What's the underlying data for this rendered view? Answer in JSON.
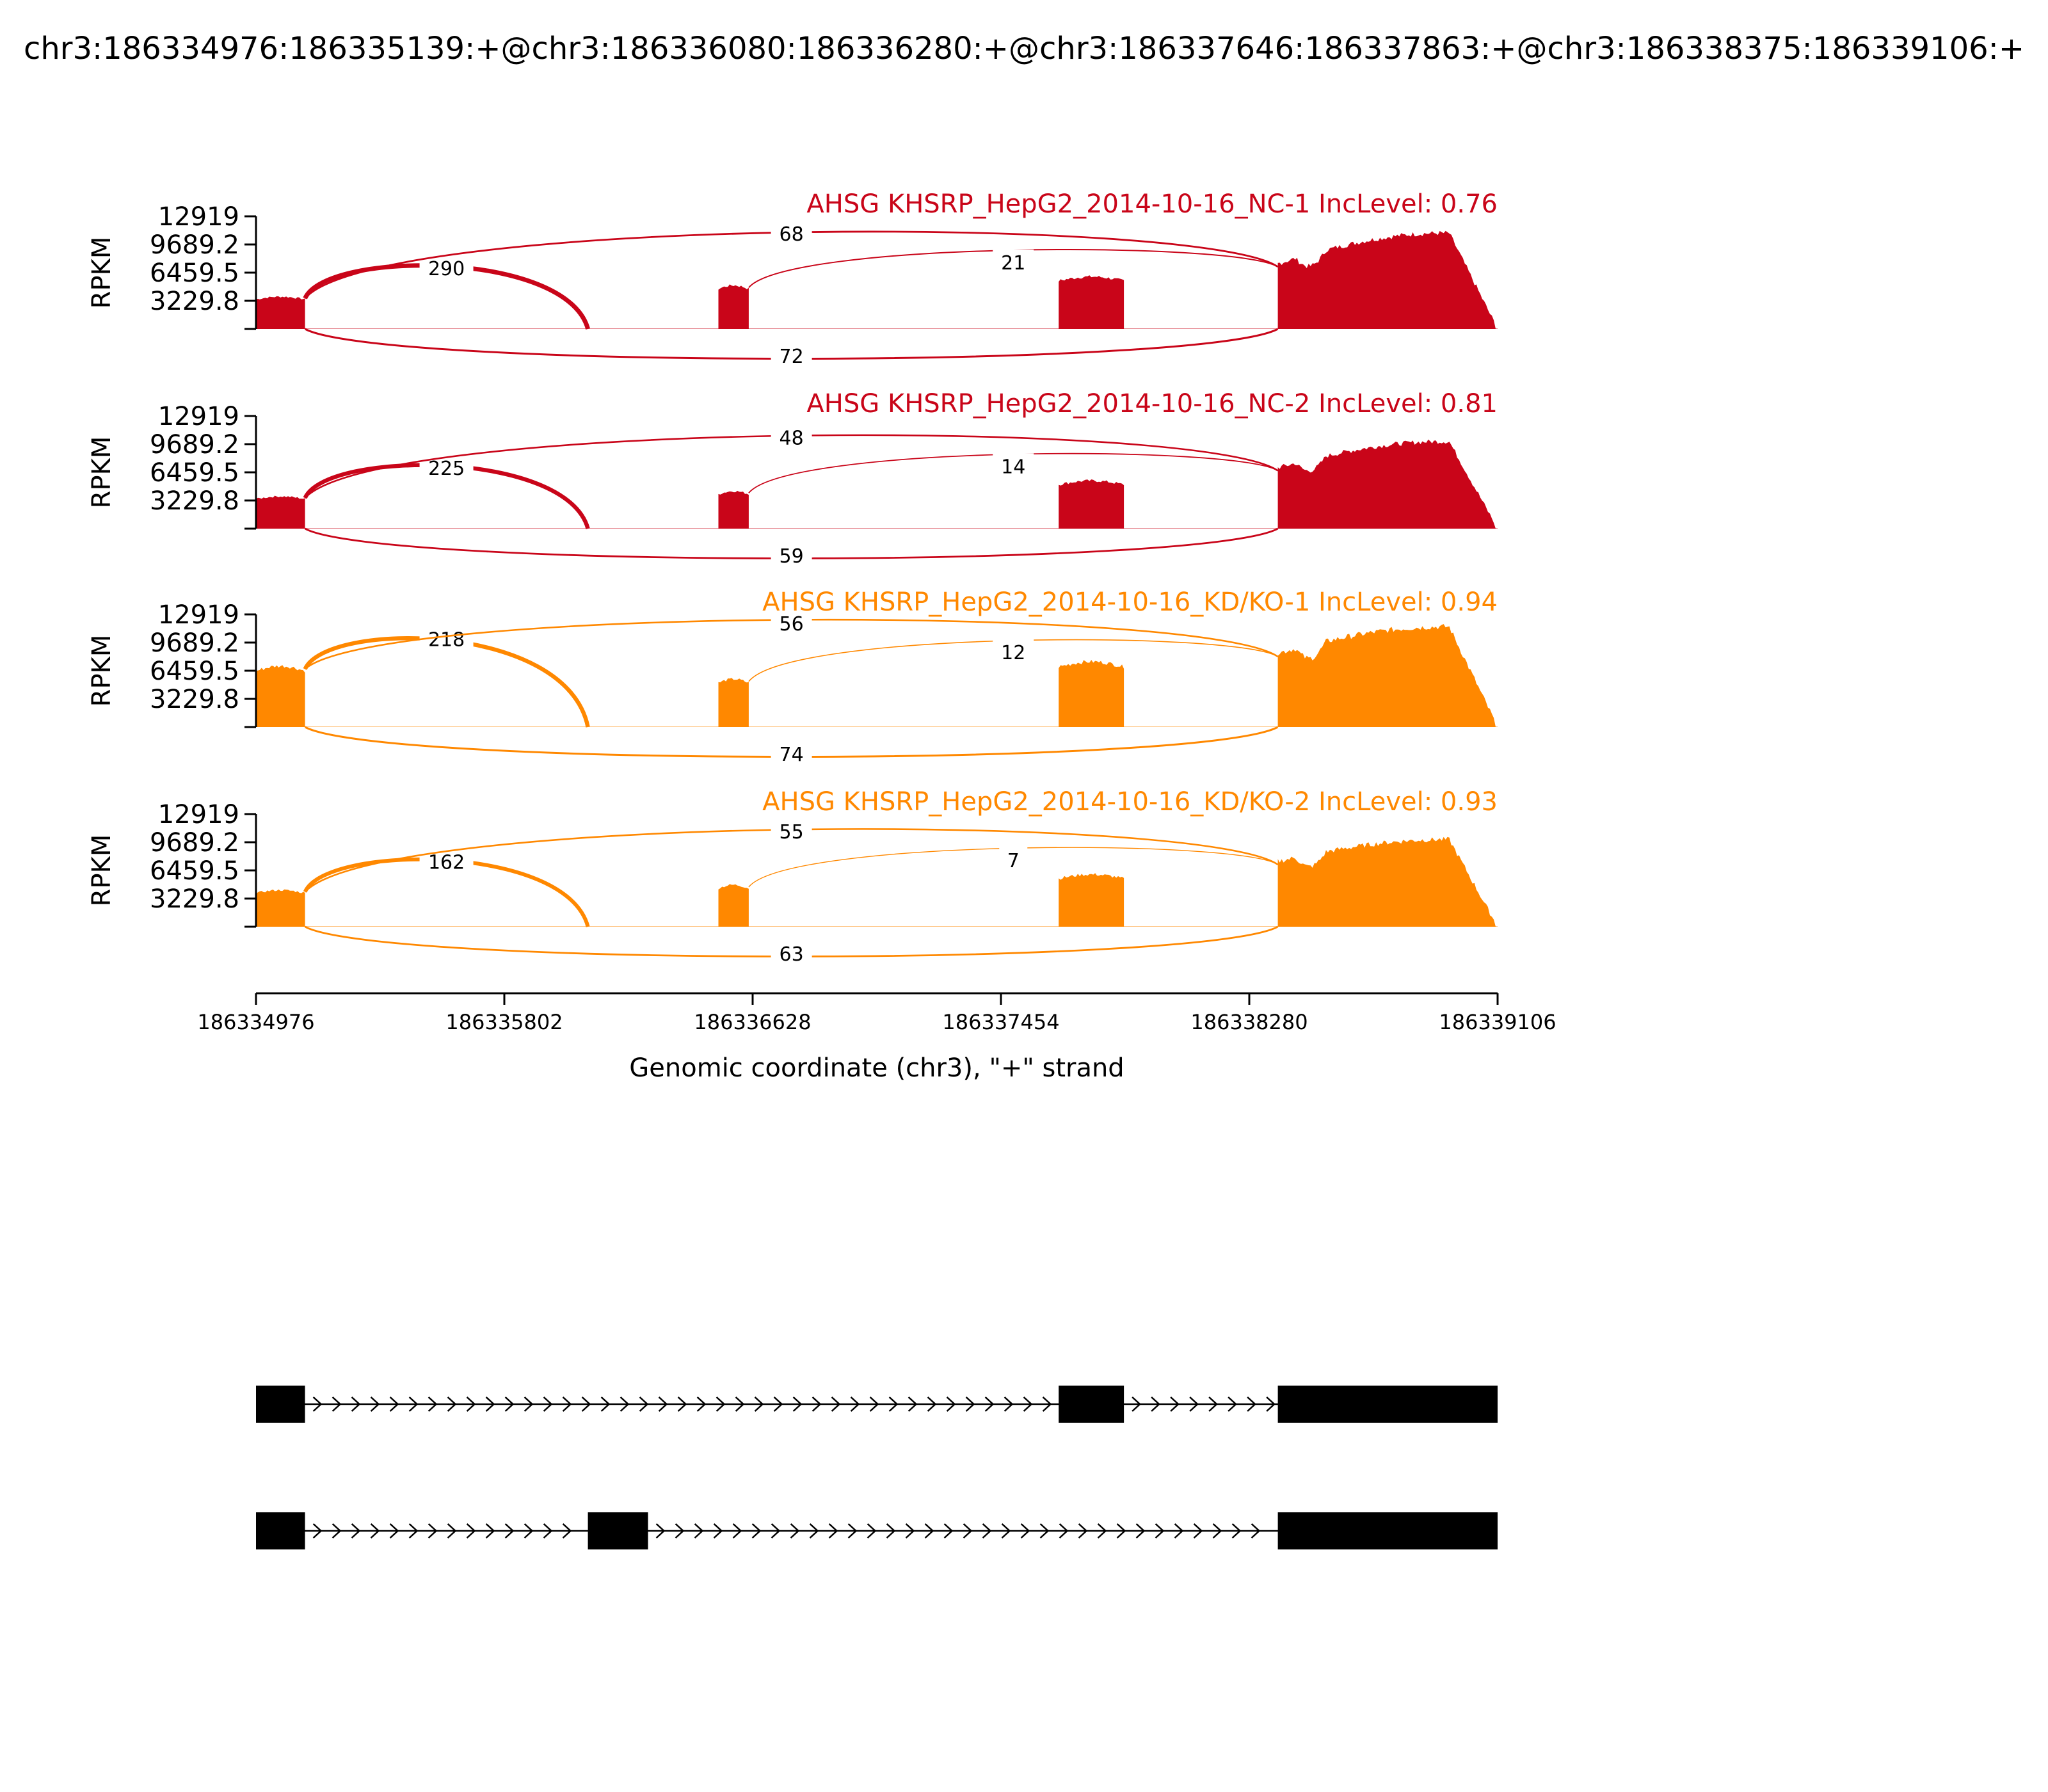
{
  "figure_title": "chr3:186334976:186335139:+@chr3:186336080:186336280:+@chr3:186337646:186337863:+@chr3:186338375:186339106:+",
  "colors": {
    "nc": "#c90519",
    "kd": "#ff8800",
    "axis": "#000000",
    "gene": "#000000"
  },
  "chart_data": {
    "type": "area",
    "title": "chr3:186334976:186335139:+@chr3:186336080:186336280:+@chr3:186337646:186337863:+@chr3:186338375:186339106:+",
    "xlabel": "Genomic coordinate (chr3), \"+\" strand",
    "ylabel": "RPKM",
    "xlim": [
      186334976,
      186339106
    ],
    "x_ticks": [
      "186334976",
      "186335802",
      "186336628",
      "186337454",
      "186338280",
      "186339106"
    ],
    "x_tick_values": [
      186334976,
      186335802,
      186336628,
      186337454,
      186338280,
      186339106
    ],
    "ylim": [
      0,
      12919
    ],
    "y_ticks": [
      "12919",
      "9689.2",
      "6459.5",
      "3229.8"
    ],
    "y_tick_values": [
      12919,
      9689.2,
      6459.5,
      3229.8
    ],
    "exons": [
      [
        186334976,
        186335139
      ],
      [
        186336080,
        186336280
      ],
      [
        186336514,
        186336615
      ],
      [
        186337646,
        186337863
      ],
      [
        186338375,
        186339106
      ]
    ],
    "samples": [
      {
        "name": "AHSG KHSRP_HepG2_2014-10-16_NC-1 IncLevel: 0.76",
        "group": "nc",
        "exon_levels": [
          3700,
          0,
          5000,
          6000,
          7500
        ],
        "tail_peak": 11000,
        "junctions": [
          {
            "from": 186335139,
            "to": 186336080,
            "count": "290",
            "side": "above",
            "width": 3.5
          },
          {
            "from": 186335139,
            "to": 186338375,
            "count": "68",
            "side": "above",
            "width": 1.4
          },
          {
            "from": 186336615,
            "to": 186338375,
            "count": "21",
            "side": "above",
            "width": 1.0
          },
          {
            "from": 186335139,
            "to": 186338375,
            "count": "72",
            "side": "below",
            "width": 1.5
          }
        ]
      },
      {
        "name": "AHSG KHSRP_HepG2_2014-10-16_NC-2 IncLevel: 0.81",
        "group": "nc",
        "exon_levels": [
          3700,
          0,
          4300,
          5500,
          7000
        ],
        "tail_peak": 10000,
        "junctions": [
          {
            "from": 186335139,
            "to": 186336080,
            "count": "225",
            "side": "above",
            "width": 3.2
          },
          {
            "from": 186335139,
            "to": 186338375,
            "count": "48",
            "side": "above",
            "width": 1.3
          },
          {
            "from": 186336615,
            "to": 186338375,
            "count": "14",
            "side": "above",
            "width": 0.9
          },
          {
            "from": 186335139,
            "to": 186338375,
            "count": "59",
            "side": "below",
            "width": 1.4
          }
        ]
      },
      {
        "name": "AHSG KHSRP_HepG2_2014-10-16_KD/KO-1 IncLevel: 0.94",
        "group": "kd",
        "exon_levels": [
          7000,
          0,
          5500,
          7500,
          8500
        ],
        "tail_peak": 11500,
        "junctions": [
          {
            "from": 186335139,
            "to": 186336080,
            "count": "218",
            "side": "above",
            "width": 3.2
          },
          {
            "from": 186335139,
            "to": 186338375,
            "count": "56",
            "side": "above",
            "width": 1.3
          },
          {
            "from": 186336615,
            "to": 186338375,
            "count": "12",
            "side": "above",
            "width": 0.8
          },
          {
            "from": 186335139,
            "to": 186338375,
            "count": "74",
            "side": "below",
            "width": 1.5
          }
        ]
      },
      {
        "name": "AHSG KHSRP_HepG2_2014-10-16_KD/KO-2 IncLevel: 0.93",
        "group": "kd",
        "exon_levels": [
          4200,
          0,
          4800,
          6000,
          7500
        ],
        "tail_peak": 10000,
        "junctions": [
          {
            "from": 186335139,
            "to": 186336080,
            "count": "162",
            "side": "above",
            "width": 3.0
          },
          {
            "from": 186335139,
            "to": 186338375,
            "count": "55",
            "side": "above",
            "width": 1.3
          },
          {
            "from": 186336615,
            "to": 186338375,
            "count": "7",
            "side": "above",
            "width": 0.7
          },
          {
            "from": 186335139,
            "to": 186338375,
            "count": "63",
            "side": "below",
            "width": 1.4
          }
        ]
      }
    ],
    "transcripts": [
      {
        "exons": [
          [
            186334976,
            186335139
          ],
          [
            186337646,
            186337863
          ],
          [
            186338375,
            186339106
          ]
        ]
      },
      {
        "exons": [
          [
            186334976,
            186335139
          ],
          [
            186336080,
            186336280
          ],
          [
            186338375,
            186339106
          ]
        ]
      }
    ]
  }
}
